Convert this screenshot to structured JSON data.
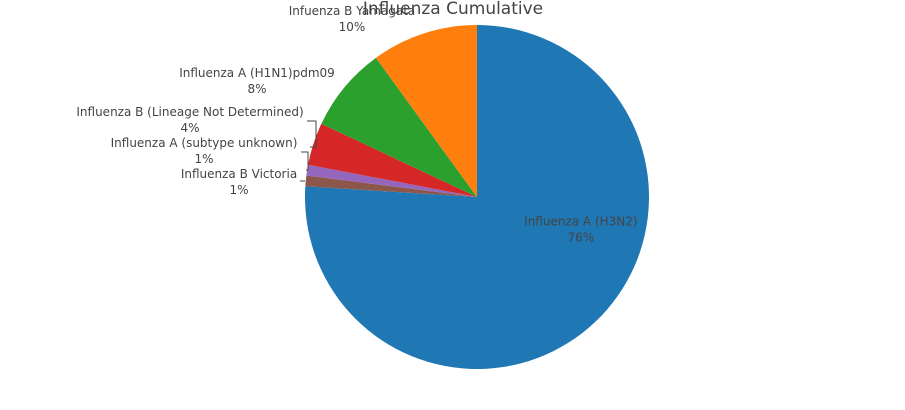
{
  "chart_data": {
    "type": "pie",
    "title": "Influenza Cumulative",
    "slices": [
      {
        "label": "Influenza A (H3N2)",
        "value": 76,
        "percent_label": "76%",
        "color": "#1f77b4"
      },
      {
        "label": "Influenza B Victoria",
        "value": 1,
        "percent_label": "1%",
        "color": "#8c564b"
      },
      {
        "label": "Influenza A (subtype unknown)",
        "value": 1,
        "percent_label": "1%",
        "color": "#9467bd"
      },
      {
        "label": "Influenza B (Lineage Not Determined)",
        "value": 4,
        "percent_label": "4%",
        "color": "#d62728"
      },
      {
        "label": "Influenza A (H1N1)pdm09",
        "value": 8,
        "percent_label": "8%",
        "color": "#2ca02c"
      },
      {
        "label": "Infuenza B Yamagata",
        "value": 10,
        "percent_label": "10%",
        "color": "#ff7f0e"
      }
    ],
    "direction": "clockwise",
    "start": "top",
    "legend": "none"
  }
}
